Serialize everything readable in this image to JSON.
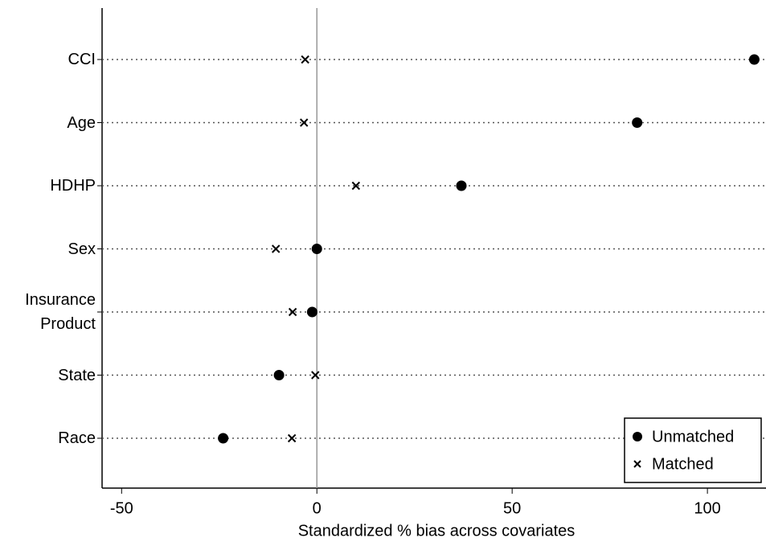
{
  "chart_data": {
    "type": "dot",
    "x_label": "Standardized % bias across covariates",
    "categories": [
      "CCI",
      "Age",
      "HDHP",
      "Sex",
      "Insurance Product",
      "State",
      "Race"
    ],
    "series": [
      {
        "name": "Unmatched",
        "color": "#000000",
        "marker": "circle",
        "values": [
          112,
          82,
          37,
          0,
          -1.2,
          -9.7,
          -24
        ]
      },
      {
        "name": "Matched",
        "color": "#000000",
        "marker": "x",
        "values": [
          -3,
          -3.3,
          10,
          -10.5,
          -6.2,
          -0.4,
          -6.4
        ]
      }
    ],
    "xlim": [
      -55,
      115
    ],
    "xticks": [
      -50,
      0,
      50,
      100
    ],
    "zero_line": true,
    "legend": "bottom-right"
  }
}
